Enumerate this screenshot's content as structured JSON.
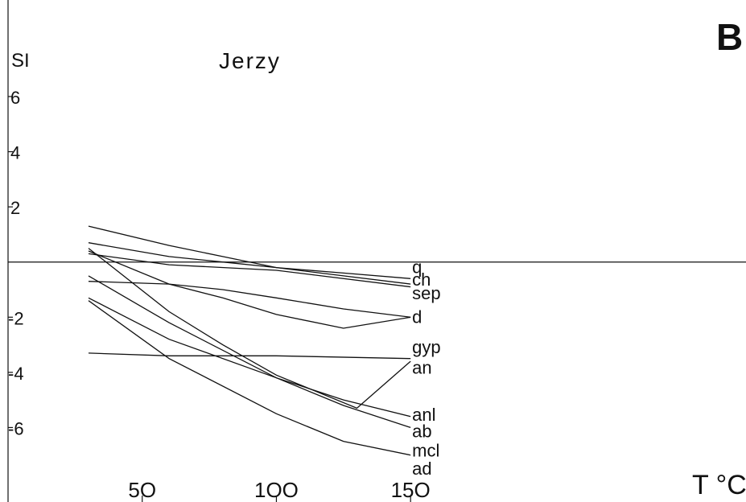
{
  "chart_data": {
    "type": "line",
    "panel_letter": "B",
    "title": "Jerzy",
    "ylabel": "SI",
    "xlabel": "T °C",
    "xlim": [
      0,
      275
    ],
    "ylim": [
      -8.7,
      9.5
    ],
    "x_ticks": [
      {
        "value": 50,
        "label": "5O"
      },
      {
        "value": 100,
        "label": "1OO"
      },
      {
        "value": 150,
        "label": "15O"
      }
    ],
    "y_ticks": [
      {
        "value": 6,
        "label": "6"
      },
      {
        "value": 4,
        "label": "4"
      },
      {
        "value": 2,
        "label": "2"
      },
      {
        "value": -2,
        "label": "-2"
      },
      {
        "value": -4,
        "label": "-4"
      },
      {
        "value": -6,
        "label": "-6"
      }
    ],
    "zero_line": true,
    "grid": false,
    "series": [
      {
        "name": "q",
        "x": [
          30,
          60,
          80,
          100,
          125,
          150
        ],
        "y": [
          1.3,
          0.6,
          0.2,
          -0.2,
          -0.4,
          -0.6
        ],
        "label_y": -0.2
      },
      {
        "name": "ch",
        "x": [
          30,
          60,
          80,
          100,
          125,
          150
        ],
        "y": [
          0.7,
          0.2,
          0.0,
          -0.2,
          -0.5,
          -0.8
        ],
        "label_y": -0.65
      },
      {
        "name": "sep",
        "x": [
          30,
          60,
          100,
          150
        ],
        "y": [
          0.3,
          -0.1,
          -0.3,
          -0.9
        ],
        "label_y": -1.15
      },
      {
        "name": "d",
        "x": [
          30,
          60,
          80,
          100,
          125,
          150
        ],
        "y": [
          0.4,
          -0.8,
          -1.3,
          -1.9,
          -2.4,
          -2.0
        ],
        "label_y": -2.0
      },
      {
        "name": "gyp",
        "x": [
          30,
          60,
          80,
          100,
          125,
          150
        ],
        "y": [
          -0.7,
          -0.8,
          -1.0,
          -1.3,
          -1.7,
          -2.0
        ],
        "label_y": -3.1
      },
      {
        "name": "an",
        "x": [
          30,
          60,
          100,
          150
        ],
        "y": [
          -3.3,
          -3.4,
          -3.4,
          -3.5
        ],
        "label_y": -3.85
      },
      {
        "name": "anl",
        "x": [
          30,
          60,
          100,
          125,
          150
        ],
        "y": [
          -0.5,
          -2.2,
          -4.2,
          -5.0,
          -5.6
        ],
        "label_y": -5.55
      },
      {
        "name": "ab",
        "x": [
          30,
          60,
          100,
          125,
          150
        ],
        "y": [
          -1.3,
          -2.8,
          -4.2,
          -5.2,
          -6.0
        ],
        "label_y": -6.15
      },
      {
        "name": "mcl",
        "x": [
          30,
          60,
          80,
          100,
          130,
          150
        ],
        "y": [
          0.5,
          -1.8,
          -3.0,
          -4.1,
          -5.3,
          -3.6
        ],
        "label_y": -6.85
      },
      {
        "name": "ad",
        "x": [
          30,
          60,
          100,
          125,
          150
        ],
        "y": [
          -1.4,
          -3.5,
          -5.5,
          -6.5,
          -7.0
        ],
        "label_y": -7.5
      }
    ],
    "colors": {
      "line": "#111111",
      "background": "#ffffff"
    }
  }
}
